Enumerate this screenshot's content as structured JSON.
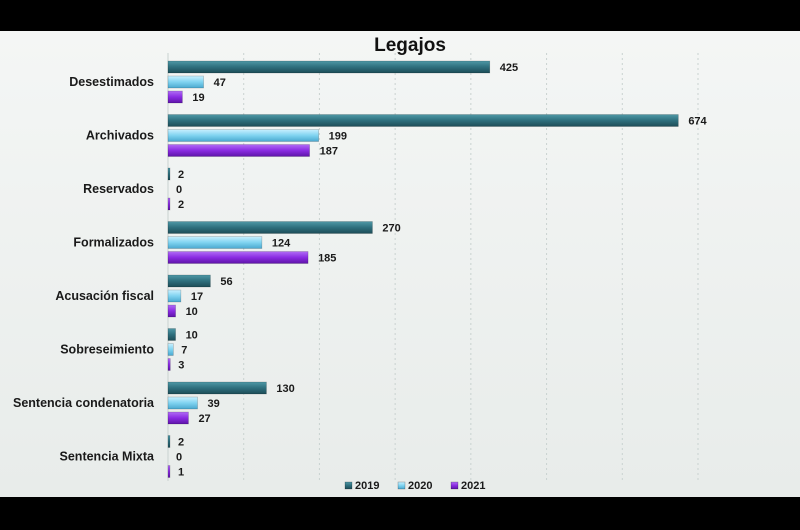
{
  "colors": {
    "2019": "#2e6f7d",
    "2020": "#7fd3f0",
    "2021": "#8a2be2",
    "grid": "#c9d2d0"
  },
  "chart_data": {
    "type": "bar",
    "orientation": "horizontal",
    "title": "Legajos",
    "categories": [
      "Desestimados",
      "Archivados",
      "Reservados",
      "Formalizados",
      "Acusación fiscal",
      "Sobreseimiento",
      "Sentencia condenatoria",
      "Sentencia Mixta"
    ],
    "series": [
      {
        "name": "2019",
        "values": [
          425,
          674,
          2,
          270,
          56,
          10,
          130,
          2
        ]
      },
      {
        "name": "2020",
        "values": [
          47,
          199,
          0,
          124,
          17,
          7,
          39,
          0
        ]
      },
      {
        "name": "2021",
        "values": [
          19,
          187,
          2,
          185,
          10,
          3,
          27,
          1
        ]
      }
    ],
    "xlim": [
      0,
      700
    ],
    "grid": true,
    "legend_position": "bottom"
  }
}
